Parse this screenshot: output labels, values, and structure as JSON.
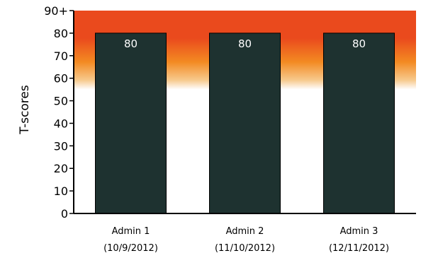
{
  "chart_data": {
    "type": "bar",
    "ylabel": "T-scores",
    "xlabel": "",
    "ylim": [
      0,
      90
    ],
    "y_ticks": [
      {
        "value": 0,
        "label": "0"
      },
      {
        "value": 10,
        "label": "10"
      },
      {
        "value": 20,
        "label": "20"
      },
      {
        "value": 30,
        "label": "30"
      },
      {
        "value": 40,
        "label": "40"
      },
      {
        "value": 50,
        "label": "50"
      },
      {
        "value": 60,
        "label": "60"
      },
      {
        "value": 70,
        "label": "70"
      },
      {
        "value": 80,
        "label": "80"
      },
      {
        "value": 90,
        "label": "90+"
      }
    ],
    "categories": [
      {
        "line1": "Admin 1",
        "line2": "(10/9/2012)"
      },
      {
        "line1": "Admin 2",
        "line2": "(11/10/2012)"
      },
      {
        "line1": "Admin 3",
        "line2": "(12/11/2012)"
      }
    ],
    "values": [
      80,
      80,
      80
    ],
    "data_labels": [
      "80",
      "80",
      "80"
    ],
    "grid": false,
    "background_band": {
      "description": "gradient shading from orange-red at top fading to white below ~55",
      "from_value": 55,
      "to_value": 90
    },
    "colors": {
      "bar": "#1e3230",
      "bar_label": "#ffffff",
      "band_top": "#ea4a1d",
      "band_mid": "#f38a22",
      "band_low": "#f7c98c",
      "axis": "#000000"
    }
  }
}
